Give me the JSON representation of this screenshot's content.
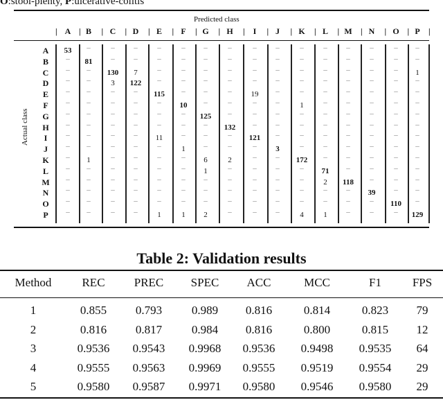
{
  "caption_fragment": {
    "o_key": "O",
    "o_text": ":stool-plenty, ",
    "p_key": "P",
    "p_text": ":ulcerative-colitis"
  },
  "confusion": {
    "predicted_label": "Predicted class",
    "actual_label": "Actual class",
    "classes": [
      "A",
      "B",
      "C",
      "D",
      "E",
      "F",
      "G",
      "H",
      "I",
      "J",
      "K",
      "L",
      "M",
      "N",
      "O",
      "P"
    ],
    "empty_symbol": "–",
    "rows": [
      {
        "label": "A",
        "values": [
          53,
          null,
          null,
          null,
          null,
          null,
          null,
          null,
          null,
          null,
          null,
          null,
          null,
          null,
          null,
          null
        ]
      },
      {
        "label": "B",
        "values": [
          null,
          81,
          null,
          null,
          null,
          null,
          null,
          null,
          null,
          null,
          null,
          null,
          null,
          null,
          null,
          null
        ]
      },
      {
        "label": "C",
        "values": [
          null,
          null,
          130,
          7,
          null,
          null,
          null,
          null,
          null,
          null,
          null,
          null,
          null,
          null,
          null,
          1
        ]
      },
      {
        "label": "D",
        "values": [
          null,
          null,
          3,
          122,
          null,
          null,
          null,
          null,
          null,
          null,
          null,
          null,
          null,
          null,
          null,
          null
        ]
      },
      {
        "label": "E",
        "values": [
          null,
          null,
          null,
          null,
          115,
          null,
          null,
          null,
          19,
          null,
          null,
          null,
          null,
          null,
          null,
          null
        ]
      },
      {
        "label": "F",
        "values": [
          null,
          null,
          null,
          null,
          null,
          10,
          null,
          null,
          null,
          null,
          1,
          null,
          null,
          null,
          null,
          null
        ]
      },
      {
        "label": "G",
        "values": [
          null,
          null,
          null,
          null,
          null,
          null,
          125,
          null,
          null,
          null,
          null,
          null,
          null,
          null,
          null,
          null
        ]
      },
      {
        "label": "H",
        "values": [
          null,
          null,
          null,
          null,
          null,
          null,
          null,
          132,
          null,
          null,
          null,
          null,
          null,
          null,
          null,
          null
        ]
      },
      {
        "label": "I",
        "values": [
          null,
          null,
          null,
          null,
          11,
          null,
          null,
          null,
          121,
          null,
          null,
          null,
          null,
          null,
          null,
          null
        ]
      },
      {
        "label": "J",
        "values": [
          null,
          null,
          null,
          null,
          null,
          1,
          null,
          null,
          null,
          3,
          null,
          null,
          null,
          null,
          null,
          null
        ]
      },
      {
        "label": "K",
        "values": [
          null,
          1,
          null,
          null,
          null,
          null,
          6,
          2,
          null,
          null,
          172,
          null,
          null,
          null,
          null,
          null
        ]
      },
      {
        "label": "L",
        "values": [
          null,
          null,
          null,
          null,
          null,
          null,
          1,
          null,
          null,
          null,
          null,
          71,
          null,
          null,
          null,
          null
        ]
      },
      {
        "label": "M",
        "values": [
          null,
          null,
          null,
          null,
          null,
          null,
          null,
          null,
          null,
          null,
          null,
          2,
          118,
          null,
          null,
          null
        ]
      },
      {
        "label": "N",
        "values": [
          null,
          null,
          null,
          null,
          null,
          null,
          null,
          null,
          null,
          null,
          null,
          null,
          null,
          39,
          null,
          null
        ]
      },
      {
        "label": "O",
        "values": [
          null,
          null,
          null,
          null,
          null,
          null,
          null,
          null,
          null,
          null,
          null,
          null,
          null,
          null,
          110,
          null
        ]
      },
      {
        "label": "P",
        "values": [
          null,
          null,
          null,
          null,
          1,
          1,
          2,
          null,
          null,
          null,
          4,
          1,
          null,
          null,
          null,
          129
        ]
      }
    ]
  },
  "table2": {
    "title": "Table 2: Validation results",
    "headers": [
      "Method",
      "REC",
      "PREC",
      "SPEC",
      "ACC",
      "MCC",
      "F1",
      "FPS"
    ],
    "rows": [
      [
        "1",
        "0.855",
        "0.793",
        "0.989",
        "0.816",
        "0.814",
        "0.823",
        "79"
      ],
      [
        "2",
        "0.816",
        "0.817",
        "0.984",
        "0.816",
        "0.800",
        "0.815",
        "12"
      ],
      [
        "3",
        "0.9536",
        "0.9543",
        "0.9968",
        "0.9536",
        "0.9498",
        "0.9535",
        "64"
      ],
      [
        "4",
        "0.9555",
        "0.9563",
        "0.9969",
        "0.9555",
        "0.9519",
        "0.9554",
        "29"
      ],
      [
        "5",
        "0.9580",
        "0.9587",
        "0.9971",
        "0.9580",
        "0.9546",
        "0.9580",
        "29"
      ]
    ]
  }
}
